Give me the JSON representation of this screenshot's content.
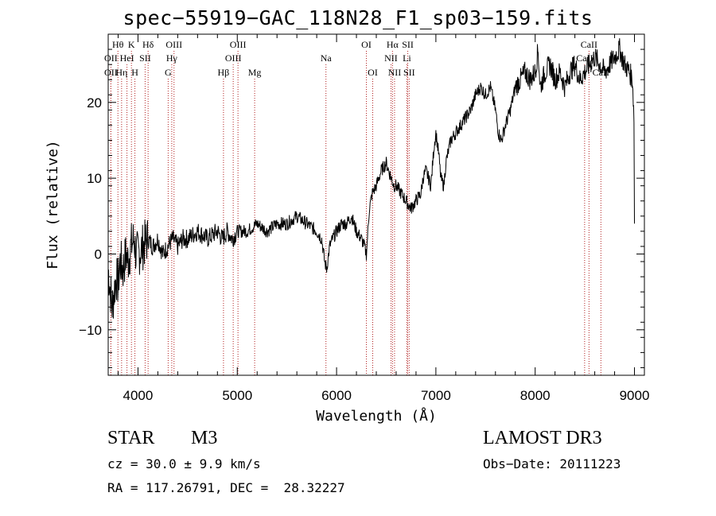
{
  "chart_data": {
    "type": "line",
    "title": "spec−55919−GAC_118N28_F1_sp03−159.fits",
    "xlabel": "Wavelength (Å)",
    "ylabel": "Flux (relative)",
    "xlim": [
      3700,
      9100
    ],
    "ylim": [
      -16,
      29
    ],
    "xticks": [
      4000,
      5000,
      6000,
      7000,
      8000,
      9000
    ],
    "yticks": [
      -10,
      0,
      10,
      20
    ],
    "series": [
      {
        "name": "spectrum",
        "x": [
          3700,
          3740,
          3760,
          3780,
          3800,
          3820,
          3850,
          3880,
          3900,
          3930,
          3960,
          3980,
          4000,
          4050,
          4100,
          4150,
          4200,
          4250,
          4300,
          4350,
          4400,
          4450,
          4500,
          4600,
          4700,
          4800,
          4850,
          4900,
          4950,
          5000,
          5100,
          5200,
          5300,
          5400,
          5500,
          5600,
          5700,
          5800,
          5850,
          5880,
          5900,
          5930,
          5960,
          6000,
          6050,
          6100,
          6150,
          6200,
          6250,
          6280,
          6300,
          6330,
          6360,
          6400,
          6450,
          6500,
          6550,
          6580,
          6600,
          6650,
          6700,
          6750,
          6800,
          6850,
          6870,
          6900,
          6950,
          6980,
          7000,
          7030,
          7050,
          7080,
          7100,
          7150,
          7200,
          7250,
          7300,
          7350,
          7400,
          7450,
          7500,
          7550,
          7600,
          7630,
          7660,
          7700,
          7750,
          7800,
          7850,
          7900,
          7950,
          8000,
          8030,
          8050,
          8100,
          8150,
          8200,
          8250,
          8300,
          8350,
          8400,
          8450,
          8500,
          8550,
          8600,
          8650,
          8700,
          8750,
          8800,
          8850,
          8900,
          8950,
          8980,
          8995,
          9000
        ],
        "y": [
          -2,
          -7,
          -5,
          -3,
          -4,
          -1,
          -2,
          0,
          -1,
          1,
          2,
          0,
          0,
          1,
          2,
          1,
          2,
          0,
          1,
          2,
          1,
          2,
          2,
          3,
          2,
          3,
          2,
          3,
          2,
          3,
          3,
          4,
          3,
          4,
          4,
          5,
          4,
          3,
          2,
          -1,
          -2,
          1,
          2,
          3,
          4,
          4,
          5,
          3,
          2,
          1,
          0,
          6,
          8,
          9,
          11,
          12,
          10,
          9,
          9,
          8,
          7,
          6,
          7,
          8,
          10,
          11,
          9,
          14,
          16,
          13,
          10,
          9,
          12,
          15,
          16,
          17,
          18,
          19,
          21,
          22,
          21,
          22,
          19,
          16,
          15,
          17,
          19,
          22,
          23,
          24,
          23,
          24,
          27,
          22,
          24,
          25,
          23,
          24,
          22,
          24,
          25,
          23,
          24,
          25,
          26,
          25,
          24,
          25,
          26,
          27,
          25,
          24,
          23,
          18,
          4
        ]
      }
    ],
    "lines": [
      {
        "label": "Hθ",
        "x": 3798,
        "row": 0
      },
      {
        "label": "K",
        "x": 3934,
        "row": 0
      },
      {
        "label": "Hδ",
        "x": 4102,
        "row": 0
      },
      {
        "label": "OIII",
        "x": 4363,
        "row": 0
      },
      {
        "label": "OIII",
        "x": 5007,
        "row": 0
      },
      {
        "label": "OI",
        "x": 6300,
        "row": 0
      },
      {
        "label": "Hα",
        "x": 6563,
        "row": 0
      },
      {
        "label": "SII",
        "x": 6717,
        "row": 0
      },
      {
        "label": "CaII",
        "x": 8542,
        "row": 0
      },
      {
        "label": "OII",
        "x": 3727,
        "row": 1
      },
      {
        "label": "HeI",
        "x": 3889,
        "row": 1
      },
      {
        "label": "SII",
        "x": 4072,
        "row": 1
      },
      {
        "label": "Hγ",
        "x": 4340,
        "row": 1
      },
      {
        "label": "OIII",
        "x": 4959,
        "row": 1
      },
      {
        "label": "Na",
        "x": 5893,
        "row": 1
      },
      {
        "label": "NII",
        "x": 6548,
        "row": 1
      },
      {
        "label": "Li",
        "x": 6708,
        "row": 1
      },
      {
        "label": "CaII",
        "x": 8498,
        "row": 1
      },
      {
        "label": "OII",
        "x": 3727,
        "row": 2
      },
      {
        "label": "Hη",
        "x": 3835,
        "row": 2
      },
      {
        "label": "H",
        "x": 3969,
        "row": 2
      },
      {
        "label": "G",
        "x": 4304,
        "row": 2
      },
      {
        "label": "Hβ",
        "x": 4861,
        "row": 2
      },
      {
        "label": "Mg",
        "x": 5175,
        "row": 2
      },
      {
        "label": "OI",
        "x": 6364,
        "row": 2
      },
      {
        "label": "NII",
        "x": 6584,
        "row": 2
      },
      {
        "label": "SII",
        "x": 6731,
        "row": 2
      },
      {
        "label": "CaII",
        "x": 8662,
        "row": 2
      }
    ]
  },
  "info": {
    "class": "STAR",
    "subclass": "M3",
    "survey": "LAMOST DR3",
    "cz": "cz = 30.0 ± 9.9 km/s",
    "obs_date": "Obs−Date: 20111223",
    "radec": "RA = 117.26791, DEC =  28.32227"
  }
}
